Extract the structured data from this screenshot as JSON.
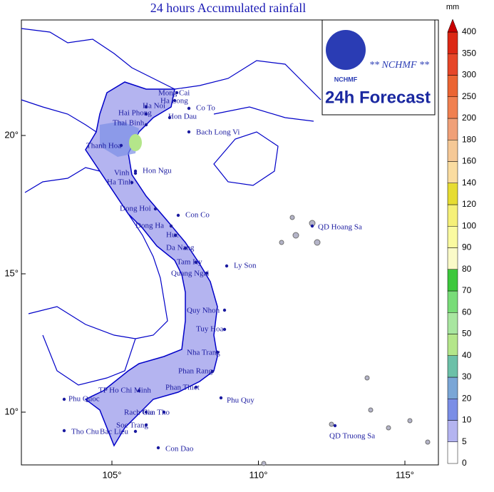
{
  "title": "24 hours Accumulated rainfall",
  "logo": {
    "agency": "** NCHMF **",
    "short": "NCHMF",
    "product": "24h Forecast"
  },
  "colorbar": {
    "unit": "mm",
    "levels": [
      0,
      5,
      10,
      20,
      30,
      40,
      50,
      60,
      70,
      80,
      90,
      100,
      120,
      140,
      160,
      180,
      200,
      250,
      300,
      350,
      400
    ],
    "colors": [
      "#ffffff",
      "#b4b4f0",
      "#7a8ee6",
      "#7aa6d6",
      "#6cc0a8",
      "#b4e68a",
      "#a8e6a0",
      "#78dc78",
      "#3cc83c",
      "#fafac8",
      "#fafaa0",
      "#f5f078",
      "#e6dc32",
      "#fadca0",
      "#f5c896",
      "#f0a078",
      "#f08050",
      "#eb6432",
      "#e64628",
      "#dc2814"
    ],
    "over_color": "#c80000"
  },
  "lon_ticks": [
    {
      "value": 105,
      "label": "105°"
    },
    {
      "value": 110,
      "label": "110°"
    },
    {
      "value": 115,
      "label": "115°"
    }
  ],
  "lat_ticks": [
    {
      "value": 10,
      "label": "10°"
    },
    {
      "value": 15,
      "label": "15°"
    },
    {
      "value": 20,
      "label": "20°"
    }
  ],
  "cities": [
    "Mong Cai",
    "Ha Long",
    "Ha Noi",
    "Co To",
    "Hai Phong",
    "Hon Dau",
    "Thai Binh",
    "Bach Long Vi",
    "Thanh Hoa",
    "Hon Ngu",
    "Vinh",
    "Ha Tinh",
    "Dong Hoi",
    "Con Co",
    "Dong Ha",
    "Hue",
    "Da Nang",
    "Tam Ky",
    "Ly Son",
    "Quang Ngai",
    "QD Hoang Sa",
    "Quy Nhon",
    "Tuy Hoa",
    "Nha Trang",
    "Phan Rang",
    "TP Ho Chi Minh",
    "Phan Thiet",
    "Phu Quy",
    "Phu Quoc",
    "Rach Gia",
    "Can Tho",
    "Soc Trang",
    "Bac Lieu",
    "Tho Chu",
    "Con Dao",
    "QD Truong Sa"
  ]
}
